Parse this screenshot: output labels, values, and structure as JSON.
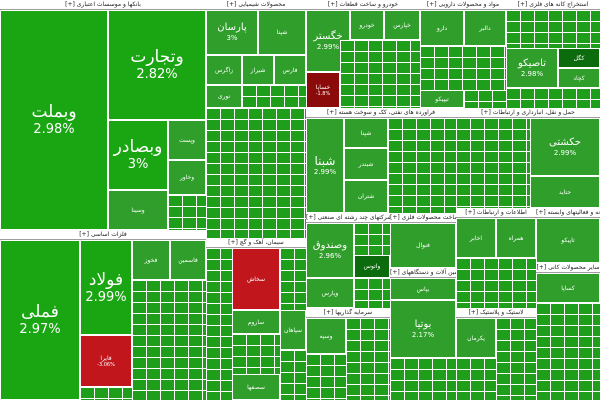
{
  "colors": {
    "strong_green": "#1aa512",
    "green": "#2f9e2a",
    "dark_green": "#0c6b0c",
    "red": "#c0161c",
    "dark_red": "#8b0a0a",
    "sector_border": "#ffffff"
  },
  "sectors": [
    {
      "title": "[+] بانکها و موسسات اعتباری",
      "tiles": [
        {
          "name": "وبملت",
          "pct": "2.98%",
          "tone": "strong_green"
        },
        {
          "name": "وتجارت",
          "pct": "2.82%",
          "tone": "strong_green"
        },
        {
          "name": "وبصادر",
          "pct": "3%",
          "tone": "strong_green"
        },
        {
          "name": "وپست",
          "pct": "",
          "tone": "green"
        },
        {
          "name": "وخاور",
          "pct": "",
          "tone": "green"
        },
        {
          "name": "وسینا",
          "pct": "",
          "tone": "green"
        }
      ]
    },
    {
      "title": "[+] محصولات شیمیایی",
      "tiles": [
        {
          "name": "پارسان",
          "pct": "3%",
          "tone": "green"
        },
        {
          "name": "شپنا",
          "pct": "",
          "tone": "green"
        },
        {
          "name": "زاگرس",
          "pct": "",
          "tone": "green"
        },
        {
          "name": "شیراز",
          "pct": "",
          "tone": "green"
        },
        {
          "name": "فارس",
          "pct": "",
          "tone": "green"
        },
        {
          "name": "نوری",
          "pct": "",
          "tone": "green"
        }
      ]
    },
    {
      "title": "[+] خودرو و ساخت قطعات",
      "tiles": [
        {
          "name": "خگستر",
          "pct": "2.99%",
          "tone": "green"
        },
        {
          "name": "خساپا",
          "pct": "-1.8%",
          "tone": "red"
        },
        {
          "name": "خودرو",
          "pct": "",
          "tone": "green"
        },
        {
          "name": "خپارس",
          "pct": "",
          "tone": "green"
        }
      ]
    },
    {
      "title": "[+] مواد و محصولات دارویی",
      "tiles": [
        {
          "name": "دارو",
          "pct": "",
          "tone": "green"
        },
        {
          "name": "دالبر",
          "pct": "",
          "tone": "green"
        },
        {
          "name": "تیپیکو",
          "pct": "",
          "tone": "green"
        }
      ]
    },
    {
      "title": "[+] استخراج کانه های فلزی",
      "tiles": [
        {
          "name": "تاصیکو",
          "pct": "2.98%",
          "tone": "green"
        },
        {
          "name": "کگل",
          "pct": "",
          "tone": "green"
        },
        {
          "name": "کچاد",
          "pct": "",
          "tone": "green"
        }
      ]
    },
    {
      "title": "[+] فراورده های نفتی، کک و سوخت هسته",
      "tiles": [
        {
          "name": "شبنا",
          "pct": "2.99%",
          "tone": "green"
        },
        {
          "name": "شپنا",
          "pct": "",
          "tone": "green"
        },
        {
          "name": "شبندر",
          "pct": "",
          "tone": "green"
        },
        {
          "name": "شتران",
          "pct": "",
          "tone": "green"
        }
      ]
    },
    {
      "title": "[+] حمل و نقل، انبارداری و ارتباطات",
      "tiles": [
        {
          "name": "حکشتی",
          "pct": "2.99%",
          "tone": "green"
        },
        {
          "name": "حتاید",
          "pct": "",
          "tone": "green"
        }
      ]
    },
    {
      "title": "[+] فلزات اساسی",
      "tiles": [
        {
          "name": "فملی",
          "pct": "2.97%",
          "tone": "strong_green"
        },
        {
          "name": "فولاد",
          "pct": "2.99%",
          "tone": "strong_green"
        },
        {
          "name": "فخوز",
          "pct": "",
          "tone": "green"
        },
        {
          "name": "فاسمین",
          "pct": "",
          "tone": "green"
        },
        {
          "name": "فایرا",
          "pct": "-3.06%",
          "tone": "red"
        }
      ]
    },
    {
      "title": "[+] سیمان، آهک و گچ",
      "tiles": [
        {
          "name": "سخاش",
          "pct": "",
          "tone": "red"
        },
        {
          "name": "ساروم",
          "pct": "",
          "tone": "green"
        },
        {
          "name": "سصفها",
          "pct": "",
          "tone": "green"
        },
        {
          "name": "سپاهان",
          "pct": "",
          "tone": "green"
        }
      ]
    },
    {
      "title": "[+] شرکتهای چند رشته ای صنعتی",
      "tiles": [
        {
          "name": "وصندوق",
          "pct": "2.96%",
          "tone": "green"
        },
        {
          "name": "واتوس",
          "pct": "",
          "tone": "dark_green"
        },
        {
          "name": "وپارس",
          "pct": "",
          "tone": "green"
        }
      ]
    },
    {
      "title": "[+] ساخت محصولات فلزی",
      "tiles": [
        {
          "name": "فنوال",
          "pct": "",
          "tone": "green"
        }
      ]
    },
    {
      "title": "[+] سرمایه گذاریها",
      "tiles": [
        {
          "name": "وسپه",
          "pct": "",
          "tone": "green"
        }
      ]
    },
    {
      "title": "[+] ماشین آلات و دستگاههای",
      "tiles": [
        {
          "name": "بپاس",
          "pct": "",
          "tone": "green"
        },
        {
          "name": "بوتیا",
          "pct": "2.17%",
          "tone": "green"
        }
      ]
    },
    {
      "title": "[+] اطلاعات و ارتباطات",
      "tiles": [
        {
          "name": "اخابر",
          "pct": "",
          "tone": "green"
        },
        {
          "name": "همراه",
          "pct": "",
          "tone": "green"
        }
      ]
    },
    {
      "title": "[+] رایانه و فعالیتهای وابسته",
      "tiles": [
        {
          "name": "تاپیکو",
          "pct": "",
          "tone": "green"
        }
      ]
    },
    {
      "title": "[+] لاستیک و پلاستیک",
      "tiles": [
        {
          "name": "پکرمان",
          "pct": "",
          "tone": "green"
        }
      ]
    },
    {
      "title": "[+] سایر محصولات کانی",
      "tiles": [
        {
          "name": "کساپا",
          "pct": "",
          "tone": "green"
        }
      ]
    }
  ]
}
